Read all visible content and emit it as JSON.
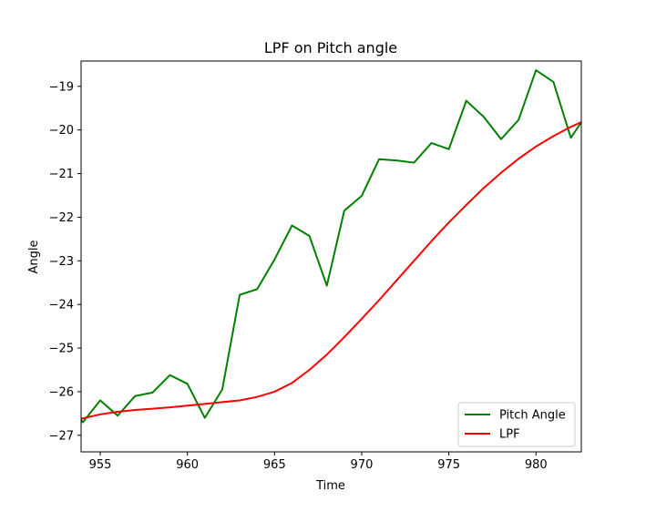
{
  "chart_data": {
    "type": "line",
    "title": "LPF on Pitch angle",
    "xlabel": "Time",
    "ylabel": "Angle",
    "xlim": [
      953.9,
      982.6
    ],
    "ylim": [
      -27.38,
      -18.42
    ],
    "grid": false,
    "legend_position": "lower right",
    "x_ticks": [
      955,
      960,
      965,
      970,
      975,
      980
    ],
    "y_ticks": [
      -27,
      -26,
      -25,
      -24,
      -23,
      -22,
      -21,
      -20,
      -19
    ],
    "x_tick_labels": [
      "955",
      "960",
      "965",
      "970",
      "975",
      "980"
    ],
    "y_tick_labels": [
      "−27",
      "−26",
      "−25",
      "−24",
      "−23",
      "−22",
      "−21",
      "−20",
      "−19"
    ],
    "series": [
      {
        "name": "Pitch Angle",
        "color": "#008000",
        "x": [
          953.9,
          954,
          955,
          956,
          957,
          958,
          959,
          960,
          961,
          962,
          963,
          964,
          965,
          966,
          967,
          968,
          969,
          970,
          971,
          972,
          973,
          974,
          975,
          976,
          977,
          978,
          979,
          980,
          981,
          982,
          982.6
        ],
        "y": [
          -26.65,
          -26.7,
          -26.2,
          -26.55,
          -26.1,
          -26.02,
          -25.62,
          -25.82,
          -26.6,
          -25.95,
          -23.78,
          -23.65,
          -22.97,
          -22.19,
          -22.43,
          -23.57,
          -21.85,
          -21.51,
          -20.67,
          -20.7,
          -20.75,
          -20.3,
          -20.44,
          -19.33,
          -19.7,
          -20.21,
          -19.77,
          -18.63,
          -18.9,
          -20.18,
          -19.82
        ]
      },
      {
        "name": "LPF",
        "color": "#ff0000",
        "x": [
          953.9,
          955,
          956,
          957,
          958,
          959,
          960,
          961,
          962,
          963,
          964,
          965,
          966,
          967,
          968,
          969,
          970,
          971,
          972,
          973,
          974,
          975,
          976,
          977,
          978,
          979,
          980,
          981,
          982,
          982.6
        ],
        "y": [
          -26.62,
          -26.52,
          -26.46,
          -26.42,
          -26.39,
          -26.36,
          -26.32,
          -26.28,
          -26.24,
          -26.2,
          -26.12,
          -26.0,
          -25.8,
          -25.5,
          -25.15,
          -24.75,
          -24.33,
          -23.9,
          -23.45,
          -23.0,
          -22.55,
          -22.12,
          -21.72,
          -21.33,
          -20.98,
          -20.66,
          -20.38,
          -20.14,
          -19.93,
          -19.82
        ]
      }
    ]
  }
}
